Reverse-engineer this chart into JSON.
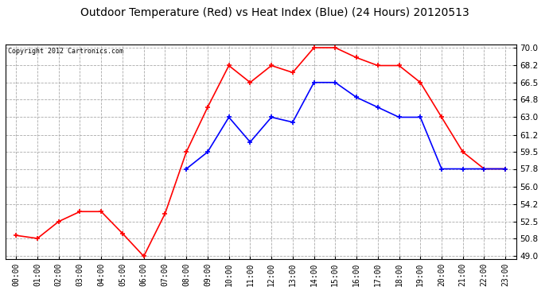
{
  "title": "Outdoor Temperature (Red) vs Heat Index (Blue) (24 Hours) 20120513",
  "copyright_text": "Copyright 2012 Cartronics.com",
  "x_labels": [
    "00:00",
    "01:00",
    "02:00",
    "03:00",
    "04:00",
    "05:00",
    "06:00",
    "07:00",
    "08:00",
    "09:00",
    "10:00",
    "11:00",
    "12:00",
    "13:00",
    "14:00",
    "15:00",
    "16:00",
    "17:00",
    "18:00",
    "19:00",
    "20:00",
    "21:00",
    "22:00",
    "23:00"
  ],
  "red_temp": [
    51.1,
    50.8,
    52.5,
    53.5,
    53.5,
    51.3,
    49.0,
    53.3,
    59.5,
    64.0,
    68.2,
    66.5,
    68.2,
    67.5,
    70.0,
    70.0,
    69.0,
    68.2,
    68.2,
    66.5,
    63.0,
    59.5,
    57.8,
    57.8
  ],
  "blue_heat": [
    null,
    null,
    null,
    null,
    null,
    null,
    null,
    null,
    57.8,
    59.5,
    63.0,
    60.5,
    63.0,
    62.5,
    66.5,
    66.5,
    65.0,
    64.0,
    63.0,
    63.0,
    57.8,
    57.8,
    57.8,
    57.8
  ],
  "ylim_min": 49.0,
  "ylim_max": 70.0,
  "yticks": [
    49.0,
    50.8,
    52.5,
    54.2,
    56.0,
    57.8,
    59.5,
    61.2,
    63.0,
    64.8,
    66.5,
    68.2,
    70.0
  ],
  "background_color": "#ffffff",
  "plot_bg_color": "#ffffff",
  "grid_color": "#aaaaaa",
  "title_fontsize": 10,
  "copyright_fontsize": 6,
  "red_color": "#ff0000",
  "blue_color": "#0000ff",
  "marker": "+",
  "marker_size": 5,
  "line_width": 1.2
}
